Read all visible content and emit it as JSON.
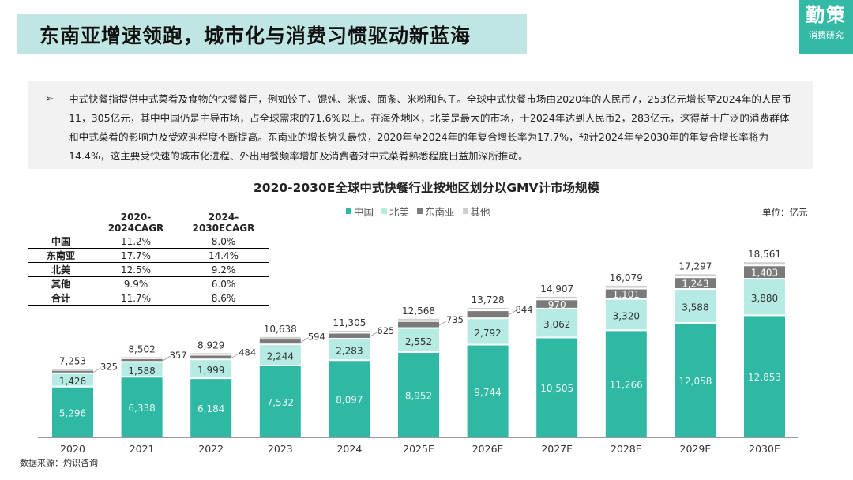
{
  "header": {
    "title": "东南亚增速领跑，城市化与消费习惯驱动新蓝海",
    "brand_main": "勤策",
    "brand_sub": "消费研究"
  },
  "description": {
    "bullet": "➢",
    "text": "中式快餐指提供中式菜肴及食物的快餐餐厅，例如饺子、馄饨、米饭、面条、米粉和包子。全球中式快餐市场由2020年的人民币7，253亿元增长至2024年的人民币11，305亿元，其中中国仍是主导市场，占全球需求的71.6%以上。在海外地区，北美是最大的市场，于2024年达到人民币2，283亿元，这得益于广泛的消费群体和中式菜肴的影响力及受欢迎程度不断提高。东南亚的增长势头最快，2020年至2024年的年复合增长率为17.7%，预计2024年至2030年的年复合增长率将为14.4%，这主要受快速的城市化进程、外出用餐频率增加及消费者对中式菜肴熟悉程度日益加深所推动。"
  },
  "chart_title": "2020-2030E全球中式快餐行业按地区划分以GMV计市场规模",
  "unit": "单位：亿元",
  "source": "数据来源：灼识咨询",
  "cagr_table": {
    "headers": [
      "",
      "2020-2024CAGR",
      "2024-2030ECAGR"
    ],
    "rows": [
      {
        "label": "中国",
        "v1": "11.2%",
        "v2": "8.0%"
      },
      {
        "label": "东南亚",
        "v1": "17.7%",
        "v2": "14.4%"
      },
      {
        "label": "北美",
        "v1": "12.5%",
        "v2": "9.2%"
      },
      {
        "label": "其他",
        "v1": "9.9%",
        "v2": "6.0%"
      },
      {
        "label": "合计",
        "v1": "11.7%",
        "v2": "8.6%"
      }
    ]
  },
  "colors": {
    "china": "#2fb8a4",
    "north_america": "#b5ebe3",
    "southeast_asia": "#7a7a7a",
    "other": "#cfcfcf",
    "title_bg": "#bfe6e3",
    "brand_bg": "#34b9a6"
  },
  "chart_data": {
    "type": "bar",
    "stacked": true,
    "categories": [
      "2020",
      "2021",
      "2022",
      "2023",
      "2024",
      "2025E",
      "2026E",
      "2027E",
      "2028E",
      "2029E",
      "2030E"
    ],
    "series": [
      {
        "name": "中国",
        "values": [
          5296,
          6338,
          6184,
          7532,
          8097,
          8952,
          9744,
          10505,
          11266,
          12058,
          12853
        ]
      },
      {
        "name": "北美",
        "values": [
          1426,
          1588,
          1999,
          2244,
          2283,
          2552,
          2792,
          3062,
          3320,
          3588,
          3880
        ]
      },
      {
        "name": "东南亚",
        "values": [
          325,
          357,
          484,
          594,
          625,
          735,
          844,
          970,
          1101,
          1243,
          1403
        ]
      },
      {
        "name": "其他",
        "values": [
          206,
          219,
          262,
          268,
          300,
          329,
          348,
          370,
          392,
          408,
          425
        ]
      }
    ],
    "totals": [
      7253,
      8502,
      8929,
      10638,
      11305,
      12568,
      13728,
      14907,
      16079,
      17297,
      18561
    ],
    "value_labels": {
      "中国": [
        "5,296",
        "6,338",
        "6,184",
        "7,532",
        "8,097",
        "8,952",
        "9,744",
        "10,505",
        "11,266",
        "12,058",
        "12,853"
      ],
      "北美": [
        "1,426",
        "1,588",
        "1,999",
        "2,244",
        "2,283",
        "2,552",
        "2,792",
        "3,062",
        "3,320",
        "3,588",
        "3,880"
      ],
      "东南亚": [
        "325",
        "357",
        "484",
        "594",
        "625",
        "735",
        "844",
        "970",
        "1,101",
        "1,243",
        "1,403"
      ],
      "totals": [
        "7,253",
        "8,502",
        "8,929",
        "10,638",
        "11,305",
        "12,568",
        "13,728",
        "14,907",
        "16,079",
        "17,297",
        "18,561"
      ]
    },
    "legend": [
      "中国",
      "北美",
      "东南亚",
      "其他"
    ],
    "legend_position": "top-center",
    "grid": false,
    "ylim": [
      0,
      19000
    ]
  }
}
